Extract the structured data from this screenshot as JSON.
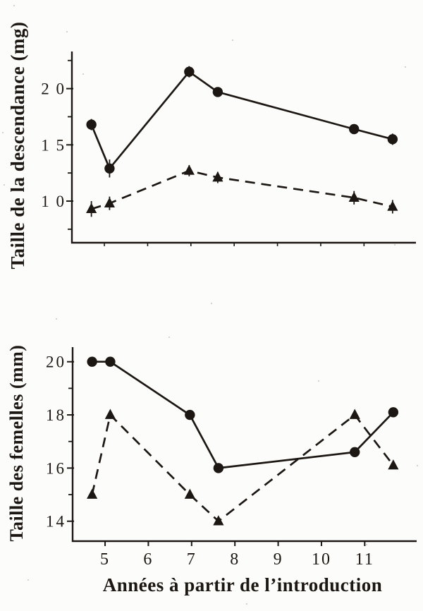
{
  "page": {
    "background": "#fcfcfa",
    "ink": "#1c1712",
    "description": "Scanned journal figure with two stacked line charts"
  },
  "chart_data": [
    {
      "type": "line",
      "title": "",
      "ylabel": "Taille de la descendance (mg)",
      "xlabel": "",
      "x": [
        4.7,
        5.12,
        6.96,
        7.62,
        10.77,
        11.66
      ],
      "series": [
        {
          "name": "descendance-cercles-pleins",
          "marker": "circle",
          "line": "solid",
          "values": [
            1.68,
            1.29,
            2.15,
            1.97,
            1.64,
            1.55
          ],
          "errors": [
            0.05,
            0.08,
            0.05,
            0.04,
            0.04,
            0.05
          ]
        },
        {
          "name": "descendance-triangles",
          "marker": "triangle",
          "line": "dashed",
          "values": [
            0.93,
            0.98,
            1.27,
            1.21,
            1.03,
            0.95
          ],
          "errors": [
            0.07,
            0.06,
            0.05,
            0.05,
            0.06,
            0.06
          ]
        }
      ],
      "xlim": [
        4.25,
        12.2
      ],
      "ylim": [
        0.63,
        2.33
      ],
      "grid": false,
      "legend": null,
      "yticks": {
        "minor": [
          0.75,
          1.25,
          1.75,
          2.25
        ],
        "labeled": [
          {
            "v": 2.0,
            "label": "2 0"
          },
          {
            "v": 1.5,
            "label": "1 5"
          },
          {
            "v": 1.0,
            "label": "1 0"
          }
        ]
      },
      "xticks": {
        "minor": [
          5,
          6,
          7,
          8,
          9,
          10,
          11
        ],
        "labeled": []
      }
    },
    {
      "type": "line",
      "title": "",
      "ylabel": "Taille des femelles (mm)",
      "xlabel": "Années à partir de l’introduction",
      "x": [
        4.7,
        5.12,
        6.96,
        7.62,
        10.77,
        11.66
      ],
      "series": [
        {
          "name": "femelles-cercles-pleins",
          "marker": "circle",
          "line": "solid",
          "values": [
            20.0,
            20.0,
            18.0,
            16.0,
            16.6,
            18.1
          ],
          "errors": null
        },
        {
          "name": "femelles-triangles",
          "marker": "triangle",
          "line": "dashed",
          "values": [
            15.0,
            18.0,
            15.0,
            14.0,
            18.0,
            16.1
          ],
          "errors": null
        }
      ],
      "xlim": [
        4.25,
        12.2
      ],
      "ylim": [
        13.25,
        20.55
      ],
      "grid": false,
      "legend": null,
      "yticks": {
        "minor": [
          15,
          17,
          19
        ],
        "labeled": [
          {
            "v": 20,
            "label": "20"
          },
          {
            "v": 18,
            "label": "18"
          },
          {
            "v": 16,
            "label": "16"
          },
          {
            "v": 14,
            "label": "14"
          }
        ]
      },
      "xticks": {
        "minor": [],
        "labeled": [
          {
            "v": 5,
            "label": "5"
          },
          {
            "v": 6,
            "label": "6"
          },
          {
            "v": 7,
            "label": "7"
          },
          {
            "v": 8,
            "label": "8"
          },
          {
            "v": 9,
            "label": "9"
          },
          {
            "v": 10,
            "label": "10"
          },
          {
            "v": 11,
            "label": "11"
          }
        ]
      }
    }
  ]
}
